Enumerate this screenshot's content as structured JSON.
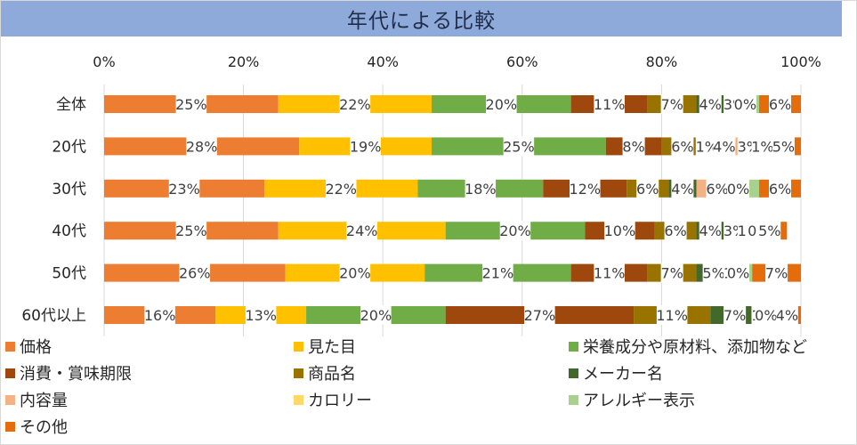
{
  "title": "年代による比較",
  "chart_data": {
    "type": "bar",
    "stacked": true,
    "orientation": "horizontal",
    "title": "年代による比較",
    "xlim": [
      0,
      100
    ],
    "x_ticks": [
      "0%",
      "20%",
      "40%",
      "60%",
      "80%",
      "100%"
    ],
    "categories": [
      "全体",
      "20代",
      "30代",
      "40代",
      "50代",
      "60代以上"
    ],
    "series": [
      {
        "name": "価格",
        "color": "#ed7d31",
        "values": [
          25,
          28,
          23,
          25,
          26,
          16
        ],
        "labels": [
          "25%",
          "28%",
          "23%",
          "25%",
          "26%",
          "16%"
        ]
      },
      {
        "name": "見た目",
        "color": "#ffc000",
        "values": [
          22,
          19,
          22,
          24,
          20,
          13
        ],
        "labels": [
          "22%",
          "19%",
          "22%",
          "24%",
          "20%",
          "13%"
        ]
      },
      {
        "name": "栄養成分や原材料、添加物など",
        "color": "#70ad47",
        "values": [
          20,
          25,
          18,
          20,
          21,
          20
        ],
        "labels": [
          "20%",
          "25%",
          "18%",
          "20%",
          "21%",
          "20%"
        ]
      },
      {
        "name": "消費・賞味期限",
        "color": "#9e480e",
        "values": [
          11,
          8,
          12,
          10,
          11,
          27
        ],
        "labels": [
          "11%",
          "8%",
          "12%",
          "10%",
          "11%",
          "27%"
        ]
      },
      {
        "name": "商品名",
        "color": "#997300",
        "values": [
          7,
          6,
          6,
          6,
          7,
          11
        ],
        "labels": [
          "7%",
          "6%",
          "6%",
          "6%",
          "7%",
          "11%"
        ]
      },
      {
        "name": "メーカー名",
        "color": "#43682b",
        "values": [
          4,
          1,
          4,
          4,
          5,
          7
        ],
        "labels": [
          "4%",
          "1%",
          "4%",
          "4%",
          "5%",
          "7%"
        ]
      },
      {
        "name": "内容量",
        "color": "#f4b183",
        "values": [
          3,
          4,
          6,
          3,
          1,
          1
        ],
        "labels": [
          "3%",
          "4%",
          "6%",
          "3%",
          "1%",
          "1%"
        ]
      },
      {
        "name": "カロリー",
        "color": "#ffd966",
        "values": [
          0,
          3,
          0,
          1,
          0,
          0
        ],
        "labels": [
          "0%",
          "3%",
          "0%",
          "1%",
          "0%",
          "0%"
        ]
      },
      {
        "name": "アレルギー表示",
        "color": "#a9d18e",
        "values": [
          2,
          1,
          3,
          0,
          2,
          1
        ],
        "labels": [
          "",
          "1%",
          "",
          "0",
          "",
          ""
        ]
      },
      {
        "name": "その他",
        "color": "#e46c0a",
        "values": [
          6,
          5,
          6,
          5,
          7,
          4
        ],
        "labels": [
          "6%",
          "5%",
          "6%",
          "5%",
          "7%",
          "4%"
        ]
      }
    ]
  }
}
